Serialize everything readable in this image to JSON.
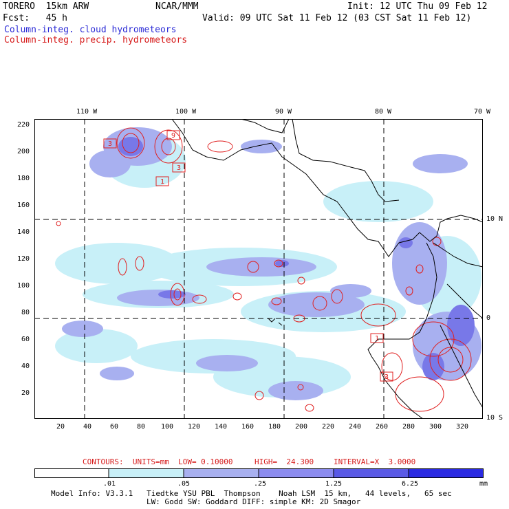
{
  "header": {
    "model": "TORERO  15km ARW",
    "org": "NCAR/MMM",
    "init": "Init: 12 UTC Thu 09 Feb 12",
    "fcst": "Fcst:   45 h",
    "valid": "Valid: 09 UTC Sat 11 Feb 12 (03 CST Sat 11 Feb 12)",
    "field_cloud": "Column-integ. cloud hydrometeors",
    "field_precip": "Column-integ. precip. hydrometeors"
  },
  "map": {
    "lon_labels": [
      "110 W",
      "100 W",
      "90 W",
      "80 W",
      "70 W"
    ],
    "lat_labels": [
      "10 N",
      "0",
      "10 S"
    ],
    "y_ticks": [
      "220",
      "200",
      "180",
      "160",
      "140",
      "120",
      "100",
      "80",
      "60",
      "40",
      "20"
    ],
    "x_ticks": [
      "20",
      "40",
      "60",
      "80",
      "100",
      "120",
      "140",
      "160",
      "180",
      "200",
      "220",
      "240",
      "260",
      "280",
      "300",
      "320"
    ],
    "box_labels": [
      "3",
      "9",
      "3",
      "1",
      "1",
      "3"
    ],
    "colors": {
      "cloud_light": "#c8f0f8",
      "cloud_mid": "#a8b0f0",
      "cloud_strong": "#7878e8",
      "precip": "#e02020",
      "coast": "#000000"
    }
  },
  "contours": {
    "units": "CONTOURS:  UNITS=mm  LOW= 0.10000",
    "high": "HIGH=  24.300",
    "interval": "INTERVAL=X  3.0000"
  },
  "colorbar": {
    "labels": [
      ".01",
      ".05",
      ".25",
      "1.25",
      "6.25"
    ],
    "unit": "mm",
    "colors": [
      "#ffffff",
      "#c8f0f8",
      "#a8b0f0",
      "#8c8cf0",
      "#5a5ae6",
      "#3030e0",
      "#1a1ae0"
    ]
  },
  "footer": {
    "line1": "Model Info: V3.3.1   Tiedtke YSU PBL  Thompson    Noah LSM  15 km,   44 levels,   65 sec",
    "line2": "LW: Godd SW: Goddard DIFF: simple KM: 2D Smagor"
  }
}
